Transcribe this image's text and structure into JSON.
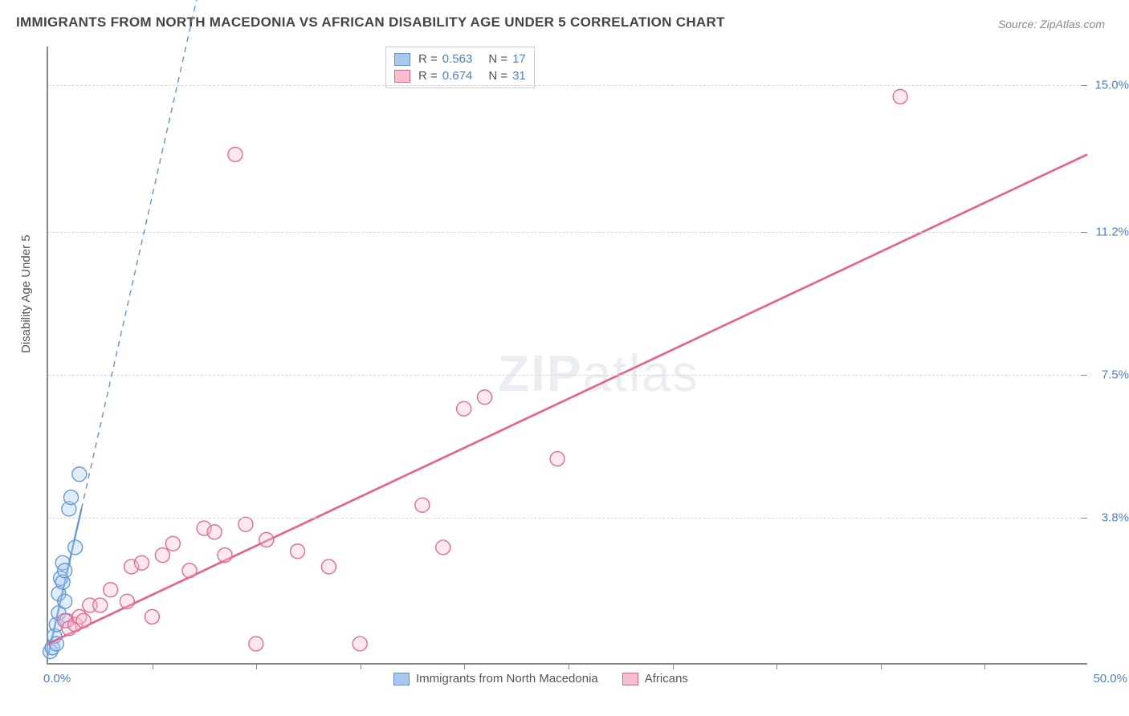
{
  "title": "IMMIGRANTS FROM NORTH MACEDONIA VS AFRICAN DISABILITY AGE UNDER 5 CORRELATION CHART",
  "source": "Source: ZipAtlas.com",
  "watermark_a": "ZIP",
  "watermark_b": "atlas",
  "chart": {
    "type": "scatter",
    "background_color": "#ffffff",
    "grid_color": "#d8d8d8",
    "axis_color": "#888888",
    "xlabel": "",
    "ylabel": "Disability Age Under 5",
    "label_color": "#555555",
    "label_fontsize": 15,
    "tick_label_color": "#4a7fd6",
    "tick_label_fontsize": 15,
    "xlim": [
      0,
      50
    ],
    "ylim": [
      0,
      16
    ],
    "x_origin_label": "0.0%",
    "x_max_label": "50.0%",
    "y_ticks": [
      {
        "v": 3.8,
        "label": "3.8%"
      },
      {
        "v": 7.5,
        "label": "7.5%"
      },
      {
        "v": 11.2,
        "label": "11.2%"
      },
      {
        "v": 15.0,
        "label": "15.0%"
      }
    ],
    "x_tick_step": 5,
    "marker_radius": 9,
    "marker_opacity": 0.35,
    "series": [
      {
        "name": "Immigrants from North Macedonia",
        "color_fill": "#a9c8ee",
        "color_stroke": "#5b93d8",
        "R": "0.563",
        "N": "17",
        "trend": {
          "solid_from": [
            0.0,
            0.2
          ],
          "solid_to": [
            1.6,
            4.0
          ],
          "dashed_to": [
            12.5,
            30.0
          ],
          "stroke_width": 2.2
        },
        "points": [
          [
            0.1,
            0.3
          ],
          [
            0.2,
            0.4
          ],
          [
            0.3,
            0.7
          ],
          [
            0.4,
            0.5
          ],
          [
            0.4,
            1.0
          ],
          [
            0.5,
            1.3
          ],
          [
            0.5,
            1.8
          ],
          [
            0.6,
            2.2
          ],
          [
            0.7,
            2.6
          ],
          [
            0.7,
            2.1
          ],
          [
            0.8,
            1.6
          ],
          [
            0.8,
            2.4
          ],
          [
            0.9,
            1.1
          ],
          [
            1.0,
            4.0
          ],
          [
            1.1,
            4.3
          ],
          [
            1.3,
            3.0
          ],
          [
            1.5,
            4.9
          ]
        ]
      },
      {
        "name": "Africans",
        "color_fill": "#f6bfce",
        "color_stroke": "#ea5f89",
        "R": "0.674",
        "N": "31",
        "trend": {
          "solid_from": [
            0.0,
            0.5
          ],
          "solid_to": [
            50.0,
            13.2
          ],
          "stroke_width": 2.6
        },
        "points": [
          [
            0.8,
            1.1
          ],
          [
            1.0,
            0.9
          ],
          [
            1.3,
            1.0
          ],
          [
            1.5,
            1.2
          ],
          [
            1.7,
            1.1
          ],
          [
            2.0,
            1.5
          ],
          [
            2.5,
            1.5
          ],
          [
            3.0,
            1.9
          ],
          [
            3.8,
            1.6
          ],
          [
            4.0,
            2.5
          ],
          [
            4.5,
            2.6
          ],
          [
            5.0,
            1.2
          ],
          [
            5.5,
            2.8
          ],
          [
            6.0,
            3.1
          ],
          [
            6.8,
            2.4
          ],
          [
            7.5,
            3.5
          ],
          [
            8.0,
            3.4
          ],
          [
            8.5,
            2.8
          ],
          [
            9.5,
            3.6
          ],
          [
            10.0,
            0.5
          ],
          [
            10.5,
            3.2
          ],
          [
            12.0,
            2.9
          ],
          [
            13.5,
            2.5
          ],
          [
            15.0,
            0.5
          ],
          [
            18.0,
            4.1
          ],
          [
            19.0,
            3.0
          ],
          [
            20.0,
            6.6
          ],
          [
            21.0,
            6.9
          ],
          [
            24.5,
            5.3
          ],
          [
            9.0,
            13.2
          ],
          [
            41.0,
            14.7
          ]
        ]
      }
    ]
  },
  "legend_bottom": [
    {
      "label": "Immigrants from North Macedonia",
      "fill": "#a9c8ee",
      "stroke": "#5b93d8"
    },
    {
      "label": "Africans",
      "fill": "#f6bfce",
      "stroke": "#ea5f89"
    }
  ]
}
